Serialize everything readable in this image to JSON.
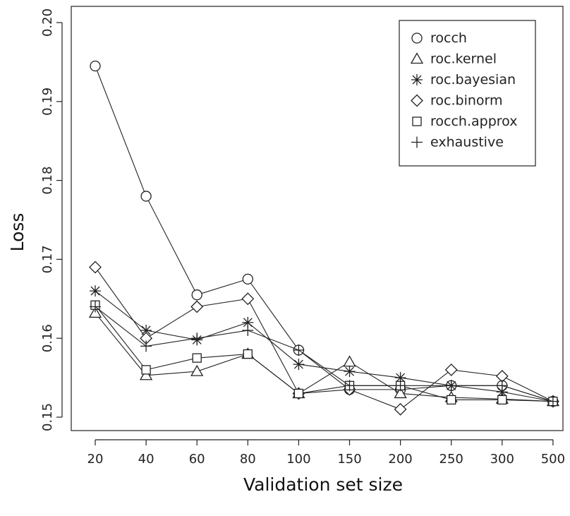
{
  "chart_data": {
    "type": "line",
    "xlabel": "Validation set size",
    "ylabel": "Loss",
    "categories": [
      "20",
      "40",
      "60",
      "80",
      "100",
      "150",
      "200",
      "250",
      "300",
      "500"
    ],
    "yticks": [
      "0.15",
      "0.16",
      "0.17",
      "0.18",
      "0.19",
      "0.20"
    ],
    "ylim": [
      0.15,
      0.2
    ],
    "grid": false,
    "legend_position": "top-right",
    "series": [
      {
        "name": "rocch",
        "marker": "circle",
        "values": [
          0.1945,
          0.178,
          0.1655,
          0.1675,
          0.1585,
          0.1535,
          0.1535,
          0.154,
          0.154,
          0.152
        ]
      },
      {
        "name": "roc.kernel",
        "marker": "triangle",
        "values": [
          0.1632,
          0.1553,
          0.1558,
          0.158,
          0.153,
          0.157,
          0.153,
          0.1525,
          0.1523,
          0.152
        ]
      },
      {
        "name": "roc.bayesian",
        "marker": "asterisk",
        "values": [
          0.166,
          0.161,
          0.1598,
          0.162,
          0.1567,
          0.1558,
          0.155,
          0.154,
          0.1532,
          0.152
        ]
      },
      {
        "name": "roc.binorm",
        "marker": "diamond",
        "values": [
          0.169,
          0.16,
          0.164,
          0.165,
          0.153,
          0.1535,
          0.151,
          0.156,
          0.1552,
          0.152
        ]
      },
      {
        "name": "rocch.approx",
        "marker": "square",
        "values": [
          0.1642,
          0.156,
          0.1575,
          0.158,
          0.153,
          0.154,
          0.154,
          0.1522,
          0.1522,
          0.152
        ]
      },
      {
        "name": "exhaustive",
        "marker": "plus",
        "values": [
          0.164,
          0.159,
          0.16,
          0.161,
          0.1585,
          0.154,
          0.154,
          0.154,
          0.154,
          0.152
        ]
      }
    ]
  }
}
